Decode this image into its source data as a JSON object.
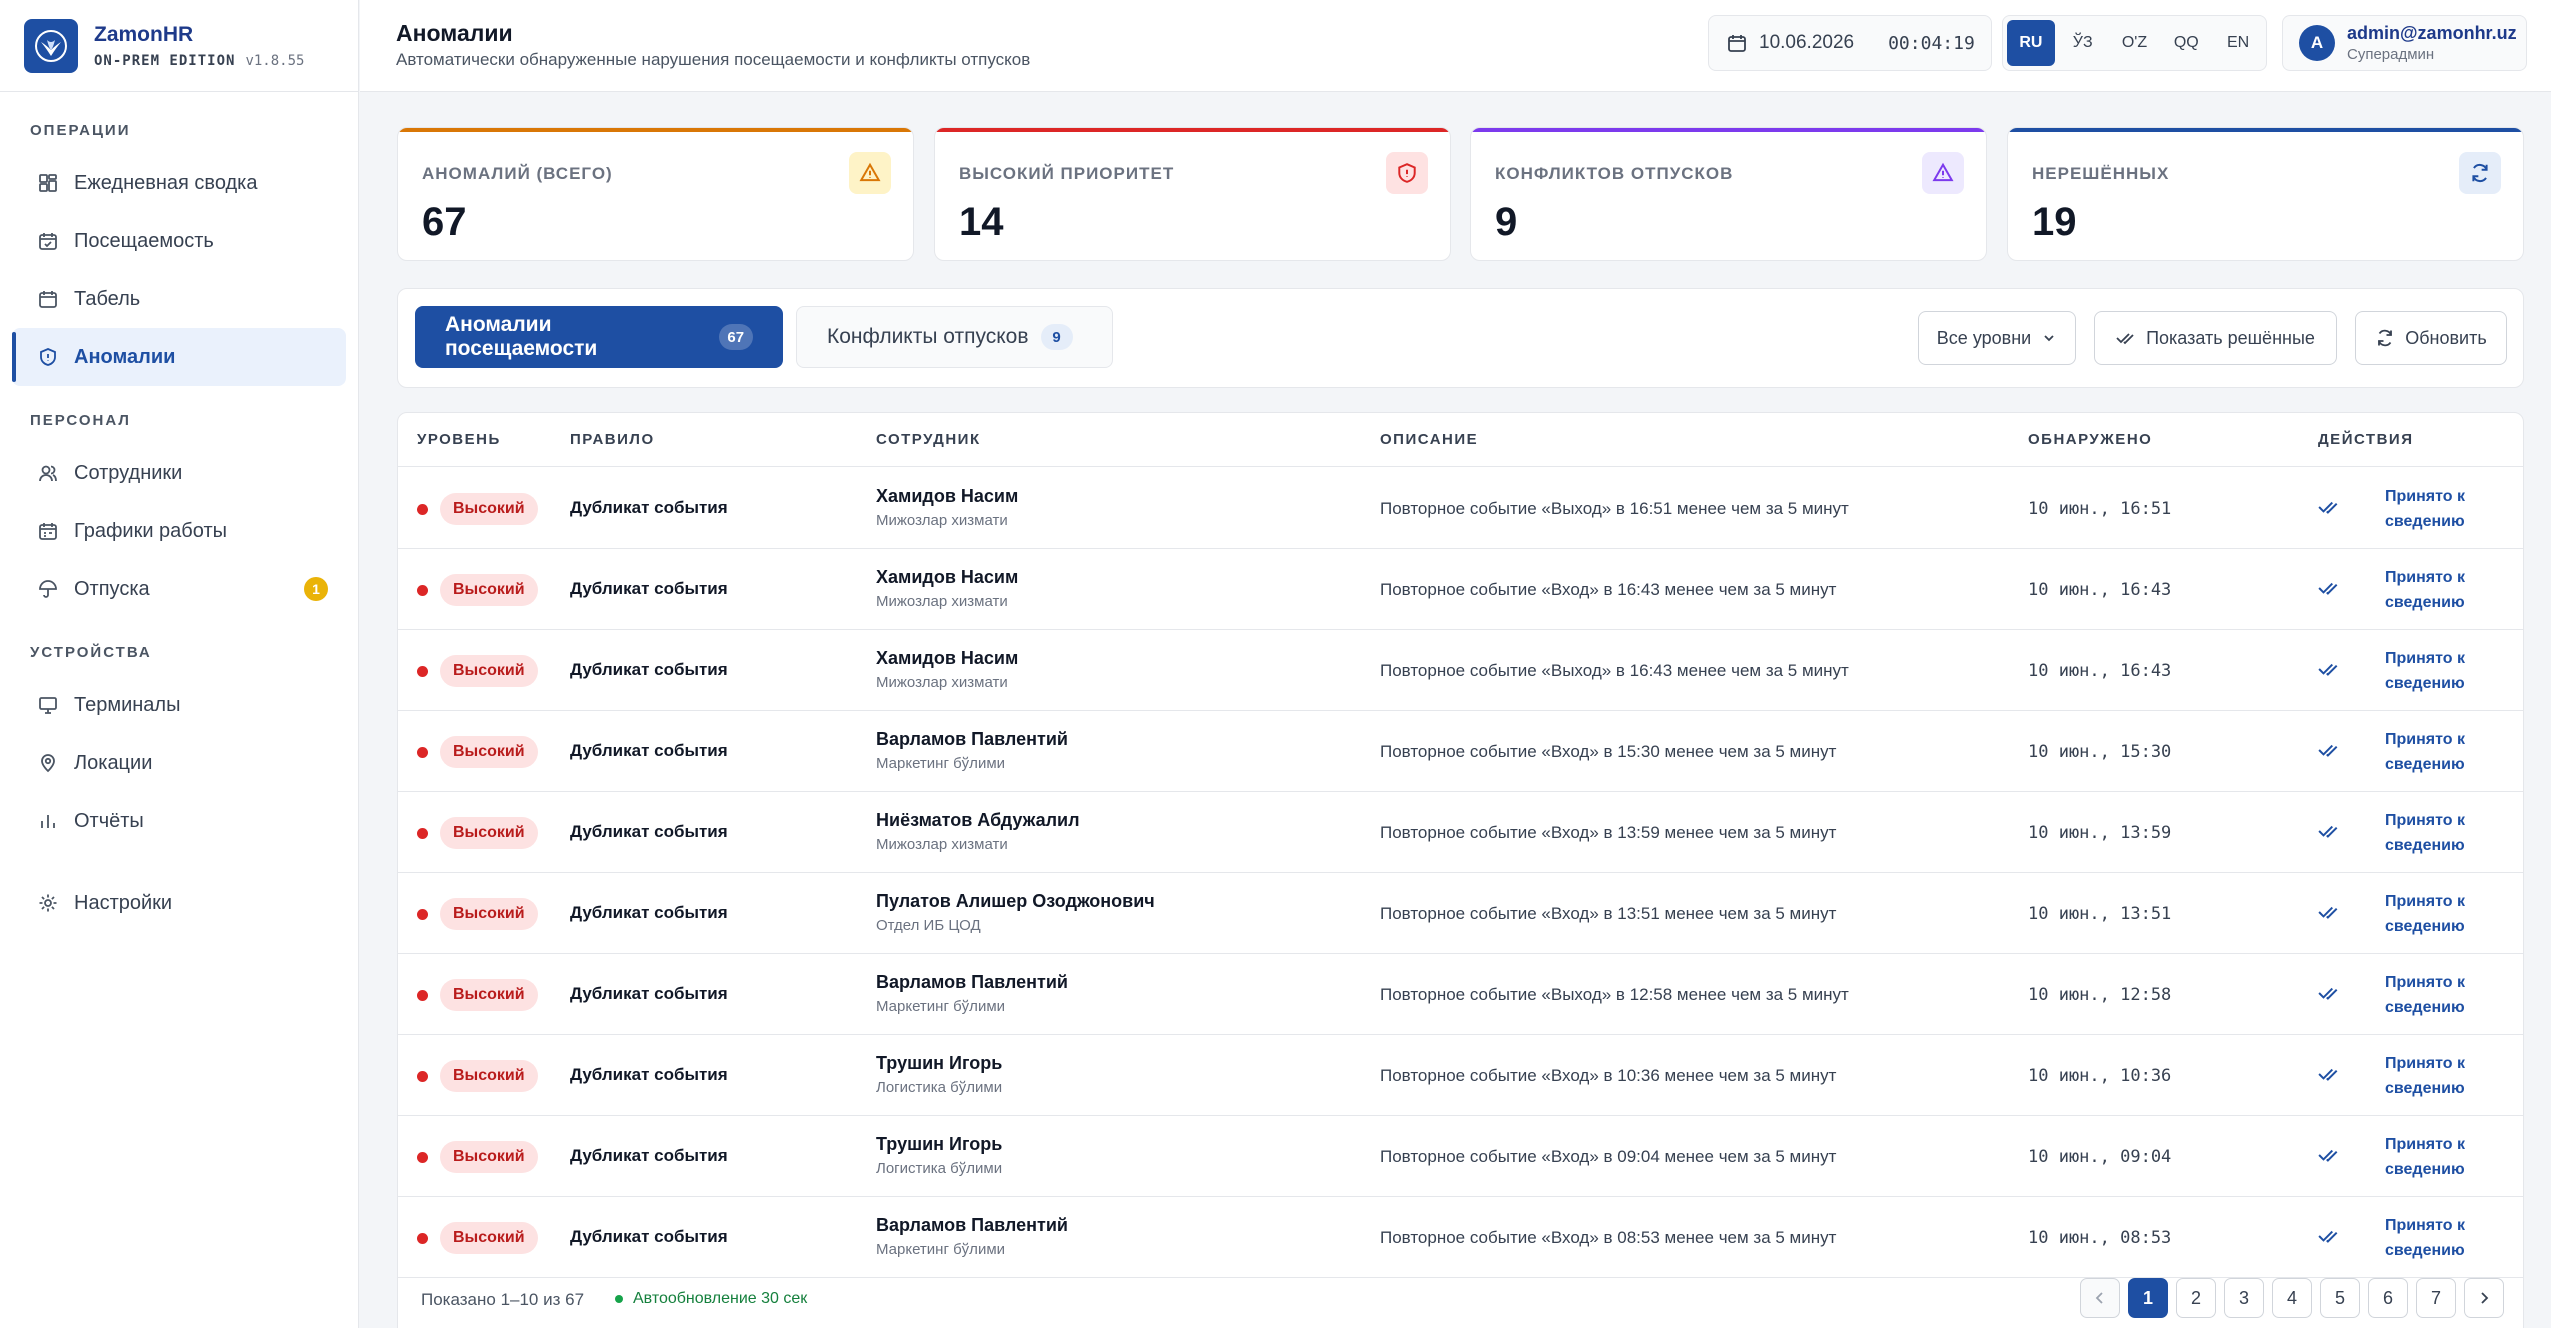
{
  "app": {
    "name": "ZamonHR",
    "edition": "ON-PREM EDITION",
    "version": "v1.8.55"
  },
  "sidebar": {
    "sections": [
      {
        "title": "ОПЕРАЦИИ",
        "items": [
          {
            "label": "Ежедневная сводка",
            "icon": "dashboard-icon"
          },
          {
            "label": "Посещаемость",
            "icon": "calendar-check-icon"
          },
          {
            "label": "Табель",
            "icon": "calendar-icon"
          },
          {
            "label": "Аномалии",
            "icon": "shield-icon",
            "active": true
          }
        ]
      },
      {
        "title": "ПЕРСОНАЛ",
        "items": [
          {
            "label": "Сотрудники",
            "icon": "users-icon"
          },
          {
            "label": "Графики работы",
            "icon": "schedule-icon"
          },
          {
            "label": "Отпуска",
            "icon": "umbrella-icon",
            "badge": "1"
          }
        ]
      },
      {
        "title": "УСТРОЙСТВА",
        "items": [
          {
            "label": "Терминалы",
            "icon": "monitor-icon"
          },
          {
            "label": "Локации",
            "icon": "map-pin-icon"
          },
          {
            "label": "Отчёты",
            "icon": "bar-chart-icon"
          }
        ]
      }
    ],
    "settings": {
      "label": "Настройки",
      "icon": "gear-icon"
    }
  },
  "header": {
    "title": "Аномалии",
    "subtitle": "Автоматически обнаруженные нарушения посещаемости и конфликты отпусков",
    "date": "10.06.2026",
    "time": "00:04:19",
    "languages": [
      "RU",
      "ЎЗ",
      "O'Z",
      "QQ",
      "EN"
    ],
    "active_language": "RU",
    "user": {
      "initial": "A",
      "email": "admin@zamonhr.uz",
      "role": "Суперадмин"
    }
  },
  "stats": [
    {
      "label": "АНОМАЛИЙ (ВСЕГО)",
      "value": "67",
      "accent": "#d97706",
      "icon": "warning-icon",
      "icon_bg": "#fef3c7",
      "icon_color": "#d97706"
    },
    {
      "label": "ВЫСОКИЙ ПРИОРИТЕТ",
      "value": "14",
      "accent": "#dc2626",
      "icon": "shield-alert-icon",
      "icon_bg": "#fee2e2",
      "icon_color": "#dc2626"
    },
    {
      "label": "КОНФЛИКТОВ ОТПУСКОВ",
      "value": "9",
      "accent": "#7c3aed",
      "icon": "alert-triangle-icon",
      "icon_bg": "#ede9fe",
      "icon_color": "#7c3aed"
    },
    {
      "label": "НЕРЕШЁННЫХ",
      "value": "19",
      "accent": "#1e4fa3",
      "icon": "refresh-icon",
      "icon_bg": "#e5edf9",
      "icon_color": "#1e4fa3"
    }
  ],
  "toolbar": {
    "tabs": [
      {
        "label": "Аномалии посещаемости",
        "count": "67"
      },
      {
        "label": "Конфликты отпусков",
        "count": "9"
      }
    ],
    "level_select": "Все уровни",
    "show_resolved": "Показать решённые",
    "refresh": "Обновить"
  },
  "table": {
    "columns": [
      "УРОВЕНЬ",
      "ПРАВИЛО",
      "СОТРУДНИК",
      "ОПИСАНИЕ",
      "ОБНАРУЖЕНО",
      "ДЕЙСТВИЯ"
    ],
    "rows": [
      {
        "level": "Высокий",
        "rule": "Дубликат события",
        "name": "Хамидов Насим",
        "dept": "Мижозлар хизмати",
        "desc": "Повторное событие «Выход» в 16:51 менее чем за 5 минут",
        "detected": "10 июн., 16:51",
        "action": "Принято к сведению"
      },
      {
        "level": "Высокий",
        "rule": "Дубликат события",
        "name": "Хамидов Насим",
        "dept": "Мижозлар хизмати",
        "desc": "Повторное событие «Вход» в 16:43 менее чем за 5 минут",
        "detected": "10 июн., 16:43",
        "action": "Принято к сведению"
      },
      {
        "level": "Высокий",
        "rule": "Дубликат события",
        "name": "Хамидов Насим",
        "dept": "Мижозлар хизмати",
        "desc": "Повторное событие «Выход» в 16:43 менее чем за 5 минут",
        "detected": "10 июн., 16:43",
        "action": "Принято к сведению"
      },
      {
        "level": "Высокий",
        "rule": "Дубликат события",
        "name": "Варламов Павлентий",
        "dept": "Маркетинг бўлими",
        "desc": "Повторное событие «Вход» в 15:30 менее чем за 5 минут",
        "detected": "10 июн., 15:30",
        "action": "Принято к сведению"
      },
      {
        "level": "Высокий",
        "rule": "Дубликат события",
        "name": "Ниёзматов Абдужалил",
        "dept": "Мижозлар хизмати",
        "desc": "Повторное событие «Вход» в 13:59 менее чем за 5 минут",
        "detected": "10 июн., 13:59",
        "action": "Принято к сведению"
      },
      {
        "level": "Высокий",
        "rule": "Дубликат события",
        "name": "Пулатов Алишер Озоджонович",
        "dept": "Отдел ИБ ЦОД",
        "desc": "Повторное событие «Вход» в 13:51 менее чем за 5 минут",
        "detected": "10 июн., 13:51",
        "action": "Принято к сведению"
      },
      {
        "level": "Высокий",
        "rule": "Дубликат события",
        "name": "Варламов Павлентий",
        "dept": "Маркетинг бўлими",
        "desc": "Повторное событие «Выход» в 12:58 менее чем за 5 минут",
        "detected": "10 июн., 12:58",
        "action": "Принято к сведению"
      },
      {
        "level": "Высокий",
        "rule": "Дубликат события",
        "name": "Трушин Игорь",
        "dept": "Логистика бўлими",
        "desc": "Повторное событие «Вход» в 10:36 менее чем за 5 минут",
        "detected": "10 июн., 10:36",
        "action": "Принято к сведению"
      },
      {
        "level": "Высокий",
        "rule": "Дубликат события",
        "name": "Трушин Игорь",
        "dept": "Логистика бўлими",
        "desc": "Повторное событие «Вход» в 09:04 менее чем за 5 минут",
        "detected": "10 июн., 09:04",
        "action": "Принято к сведению"
      },
      {
        "level": "Высокий",
        "rule": "Дубликат события",
        "name": "Варламов Павлентий",
        "dept": "Маркетинг бўлими",
        "desc": "Повторное событие «Вход» в 08:53 менее чем за 5 минут",
        "detected": "10 июн., 08:53",
        "action": "Принято к сведению"
      }
    ]
  },
  "footer": {
    "shown": "Показано 1–10 из 67",
    "auto_refresh": "Автообновление 30 сек",
    "pages": [
      "1",
      "2",
      "3",
      "4",
      "5",
      "6",
      "7"
    ],
    "current_page": "1"
  }
}
